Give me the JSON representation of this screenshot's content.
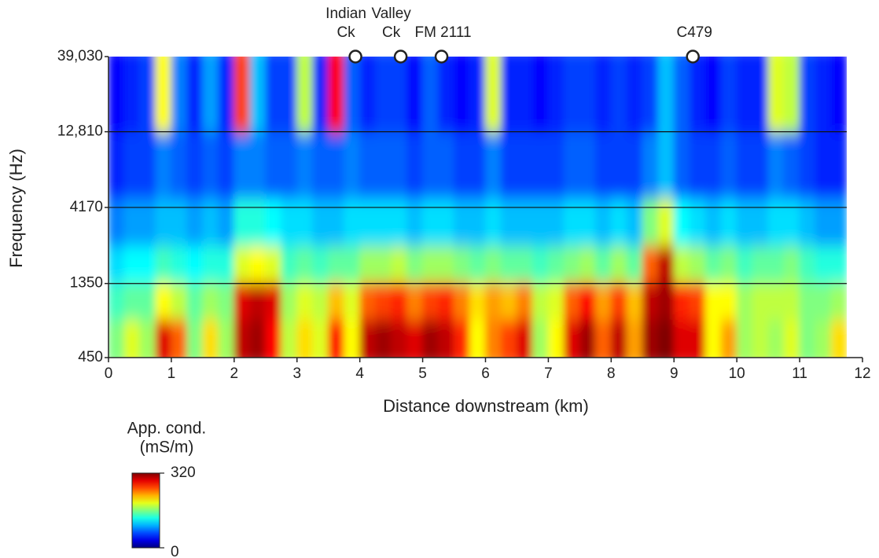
{
  "chart_data": {
    "type": "heatmap",
    "x_label": "Distance downstream (km)",
    "y_label": "Frequency (Hz)",
    "xlim": [
      0,
      12
    ],
    "xticks": [
      0,
      1,
      2,
      3,
      4,
      5,
      6,
      7,
      8,
      9,
      10,
      11,
      12
    ],
    "ylim": [
      450,
      39030
    ],
    "y_scale": "log",
    "yticks": [
      450,
      1350,
      4170,
      {
        "value": 12810,
        "label": "12,810"
      },
      {
        "value": 39030,
        "label": "39,030"
      }
    ],
    "grid": true,
    "x": [
      0.125,
      0.375,
      0.625,
      0.875,
      1.125,
      1.375,
      1.625,
      1.875,
      2.125,
      2.375,
      2.625,
      2.875,
      3.125,
      3.375,
      3.625,
      3.875,
      4.125,
      4.375,
      4.625,
      4.875,
      5.125,
      5.375,
      5.625,
      5.875,
      6.125,
      6.375,
      6.625,
      6.875,
      7.125,
      7.375,
      7.625,
      7.875,
      8.125,
      8.375,
      8.625,
      8.875,
      9.125,
      9.375,
      9.625,
      9.875,
      10.125,
      10.375,
      10.625,
      10.875,
      11.125,
      11.375,
      11.625
    ],
    "y": [
      600,
      1050,
      1800,
      3100,
      7300,
      22400
    ],
    "z": [
      [
        160,
        190,
        170,
        290,
        250,
        160,
        210,
        170,
        300,
        310,
        280,
        180,
        210,
        190,
        280,
        200,
        300,
        310,
        300,
        290,
        310,
        300,
        270,
        200,
        240,
        260,
        290,
        170,
        200,
        290,
        310,
        250,
        300,
        230,
        310,
        320,
        290,
        290,
        200,
        230,
        170,
        180,
        170,
        190,
        160,
        170,
        210
      ],
      [
        140,
        150,
        150,
        200,
        180,
        150,
        170,
        160,
        290,
        300,
        290,
        170,
        190,
        180,
        220,
        190,
        250,
        260,
        270,
        240,
        260,
        270,
        240,
        210,
        230,
        220,
        240,
        180,
        190,
        250,
        280,
        230,
        260,
        220,
        300,
        310,
        270,
        260,
        200,
        200,
        170,
        180,
        180,
        180,
        160,
        160,
        170
      ],
      [
        110,
        120,
        120,
        140,
        130,
        120,
        130,
        130,
        190,
        200,
        190,
        140,
        150,
        140,
        150,
        150,
        170,
        170,
        180,
        160,
        170,
        170,
        160,
        150,
        160,
        150,
        150,
        140,
        150,
        160,
        170,
        150,
        170,
        150,
        250,
        300,
        180,
        170,
        150,
        160,
        140,
        150,
        150,
        160,
        140,
        130,
        130
      ],
      [
        80,
        90,
        90,
        100,
        100,
        90,
        100,
        90,
        130,
        130,
        120,
        110,
        110,
        100,
        100,
        110,
        110,
        110,
        110,
        100,
        110,
        110,
        100,
        100,
        110,
        100,
        100,
        100,
        100,
        110,
        110,
        100,
        110,
        100,
        160,
        190,
        120,
        110,
        100,
        110,
        100,
        100,
        110,
        110,
        100,
        90,
        90
      ],
      [
        50,
        60,
        60,
        80,
        70,
        60,
        70,
        60,
        80,
        80,
        70,
        70,
        80,
        70,
        70,
        80,
        70,
        70,
        70,
        60,
        70,
        70,
        60,
        60,
        80,
        60,
        60,
        60,
        60,
        70,
        70,
        60,
        60,
        60,
        80,
        100,
        70,
        60,
        60,
        70,
        60,
        60,
        80,
        70,
        60,
        50,
        50
      ],
      [
        40,
        50,
        60,
        200,
        80,
        50,
        90,
        50,
        260,
        100,
        60,
        60,
        180,
        50,
        280,
        70,
        50,
        60,
        60,
        40,
        70,
        50,
        40,
        50,
        190,
        50,
        50,
        40,
        50,
        60,
        60,
        50,
        60,
        50,
        60,
        100,
        70,
        50,
        40,
        60,
        50,
        50,
        190,
        180,
        60,
        50,
        40
      ]
    ],
    "colormap": "jet",
    "colorbar_label": [
      "App. cond.",
      "(mS/m)"
    ],
    "clim": [
      0,
      320
    ],
    "cticks": [
      0,
      320
    ],
    "annotations": [
      {
        "x": 3.93,
        "lines": [
          "Indian",
          "Ck"
        ]
      },
      {
        "x": 4.65,
        "lines": [
          "Valley",
          "Ck"
        ]
      },
      {
        "x": 5.3,
        "lines": [
          "FM 2111"
        ]
      },
      {
        "x": 9.3,
        "lines": [
          "C479"
        ]
      }
    ]
  }
}
